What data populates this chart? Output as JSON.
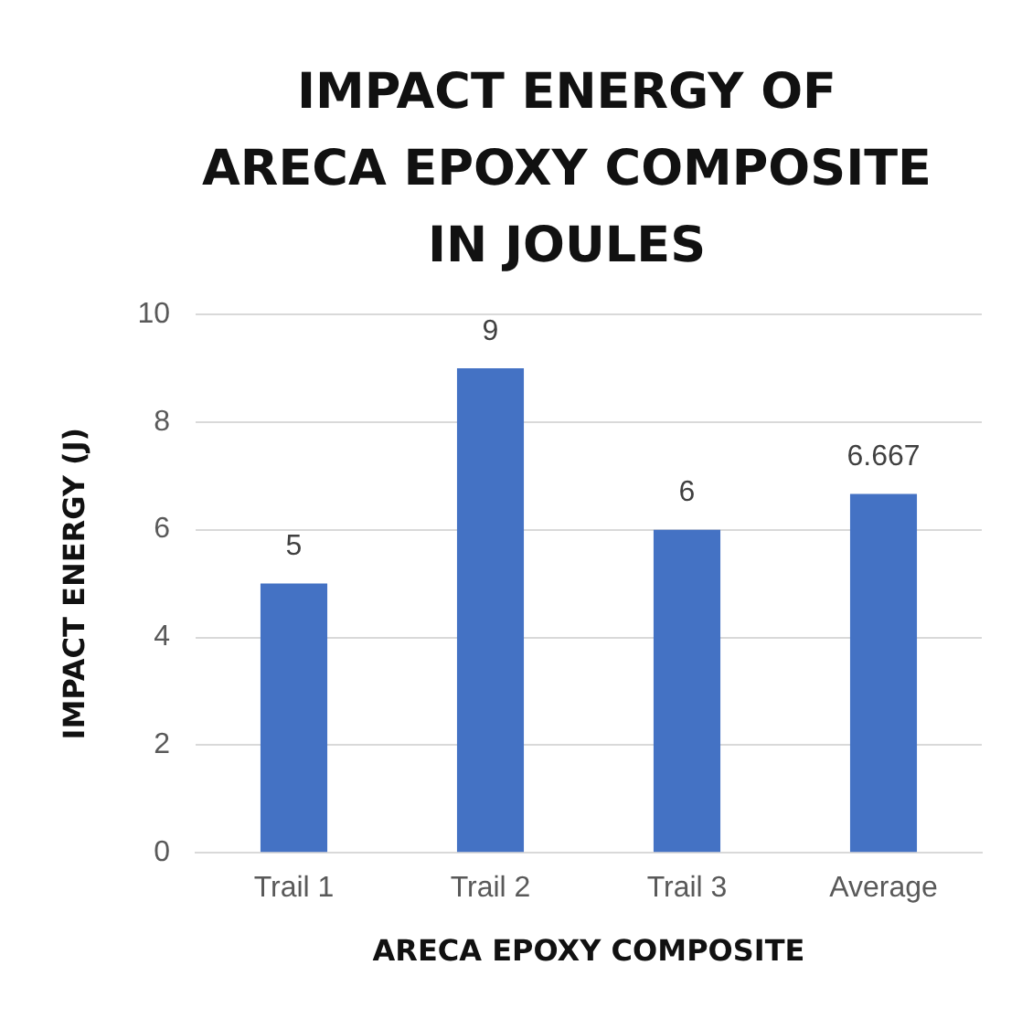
{
  "chart_data": {
    "type": "bar",
    "title": "IMPACT ENERGY OF ARECA EPOXY COMPOSITE IN JOULES",
    "xlabel": "ARECA EPOXY COMPOSITE",
    "ylabel": "IMPACT ENERGY (J)",
    "categories": [
      "Trail 1",
      "Trail 2",
      "Trail 3",
      "Average"
    ],
    "values": [
      5,
      9,
      6,
      6.667
    ],
    "color": "#4472c4",
    "ylim": [
      0,
      10
    ],
    "yticks": [
      0,
      2,
      4,
      6,
      8,
      10
    ],
    "grid": "y",
    "data_labels": true
  }
}
